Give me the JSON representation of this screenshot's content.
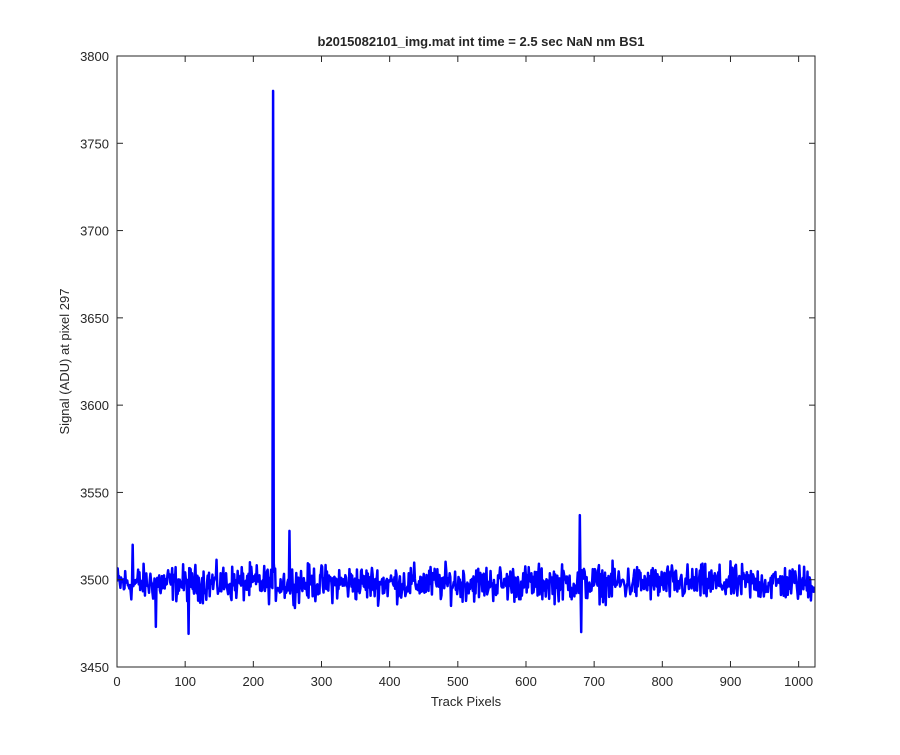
{
  "chart_data": {
    "type": "line",
    "title": "b2015082101_img.mat int time = 2.5 sec  NaN nm BS1",
    "xlabel": "Track Pixels",
    "ylabel": "Signal (ADU) at pixel 297",
    "xlim": [
      0,
      1024
    ],
    "ylim": [
      3450,
      3800
    ],
    "xticks": [
      0,
      100,
      200,
      300,
      400,
      500,
      600,
      700,
      800,
      900,
      1000
    ],
    "yticks": [
      3450,
      3500,
      3550,
      3600,
      3650,
      3700,
      3750,
      3800
    ],
    "grid": false,
    "line_color": "#0000ff",
    "baseline_mean": 3498,
    "noise_amplitude": 10,
    "n_points": 1024,
    "series": [
      {
        "values": [],
        "features": [
          {
            "x": 229,
            "y": 3780
          },
          {
            "x": 253,
            "y": 3528
          },
          {
            "x": 679,
            "y": 3537
          },
          {
            "x": 681,
            "y": 3470
          },
          {
            "x": 105,
            "y": 3469
          },
          {
            "x": 57,
            "y": 3473
          },
          {
            "x": 23,
            "y": 3520
          }
        ]
      }
    ]
  }
}
